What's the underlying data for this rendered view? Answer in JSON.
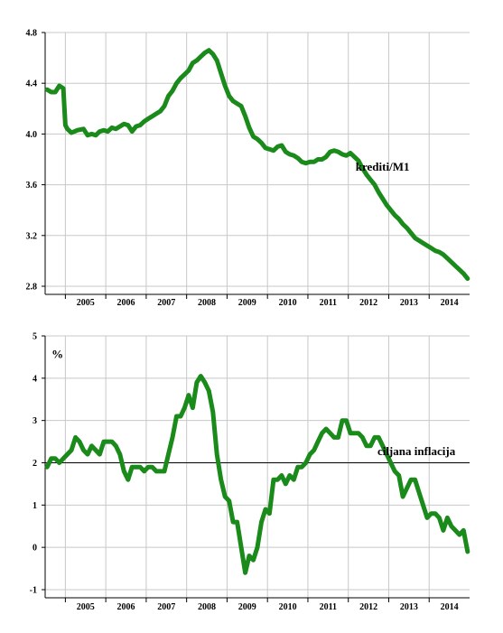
{
  "chart_data": [
    {
      "type": "line",
      "title": "",
      "xlabel": "",
      "ylabel": "",
      "x_range": [
        2004.5,
        2015.0
      ],
      "ylim": [
        2.8,
        4.8
      ],
      "ytick_values": [
        2.8,
        3.2,
        3.6,
        4.0,
        4.4,
        4.8
      ],
      "ytick_labels": [
        "2.8",
        "3.2",
        "3.6",
        "4.0",
        "4.4",
        "4.8"
      ],
      "x_categories": [
        "2005",
        "2006",
        "2007",
        "2008",
        "2009",
        "2010",
        "2011",
        "2012",
        "2013",
        "2014"
      ],
      "grid": true,
      "series_color": "#1a8a1a",
      "series": [
        {
          "name": "krediti/M1",
          "x": [
            2004.55,
            2004.65,
            2004.75,
            2004.85,
            2004.95,
            2005.0,
            2005.05,
            2005.15,
            2005.3,
            2005.45,
            2005.55,
            2005.65,
            2005.75,
            2005.85,
            2005.95,
            2006.05,
            2006.15,
            2006.25,
            2006.35,
            2006.45,
            2006.55,
            2006.65,
            2006.75,
            2006.85,
            2006.95,
            2007.05,
            2007.15,
            2007.25,
            2007.35,
            2007.45,
            2007.55,
            2007.65,
            2007.75,
            2007.85,
            2007.95,
            2008.05,
            2008.15,
            2008.25,
            2008.35,
            2008.45,
            2008.55,
            2008.65,
            2008.75,
            2008.85,
            2008.95,
            2009.05,
            2009.15,
            2009.25,
            2009.35,
            2009.45,
            2009.55,
            2009.65,
            2009.75,
            2009.85,
            2009.95,
            2010.05,
            2010.15,
            2010.25,
            2010.35,
            2010.45,
            2010.55,
            2010.65,
            2010.75,
            2010.85,
            2010.95,
            2011.05,
            2011.15,
            2011.25,
            2011.35,
            2011.45,
            2011.55,
            2011.65,
            2011.75,
            2011.85,
            2011.95,
            2012.05,
            2012.15,
            2012.25,
            2012.35,
            2012.45,
            2012.55,
            2012.65,
            2012.75,
            2012.85,
            2012.95,
            2013.05,
            2013.15,
            2013.25,
            2013.35,
            2013.45,
            2013.55,
            2013.65,
            2013.75,
            2013.85,
            2013.95,
            2014.05,
            2014.15,
            2014.25,
            2014.35,
            2014.45,
            2014.55,
            2014.65,
            2014.75,
            2014.85,
            2014.95
          ],
          "y": [
            4.35,
            4.33,
            4.33,
            4.38,
            4.36,
            4.07,
            4.04,
            4.01,
            4.03,
            4.04,
            3.99,
            4.0,
            3.99,
            4.02,
            4.03,
            4.02,
            4.05,
            4.04,
            4.06,
            4.08,
            4.07,
            4.02,
            4.06,
            4.07,
            4.1,
            4.12,
            4.14,
            4.16,
            4.18,
            4.22,
            4.3,
            4.34,
            4.4,
            4.44,
            4.47,
            4.5,
            4.56,
            4.58,
            4.61,
            4.64,
            4.66,
            4.63,
            4.58,
            4.48,
            4.38,
            4.3,
            4.26,
            4.24,
            4.22,
            4.14,
            4.05,
            3.98,
            3.96,
            3.93,
            3.89,
            3.88,
            3.87,
            3.9,
            3.91,
            3.86,
            3.84,
            3.83,
            3.81,
            3.78,
            3.77,
            3.78,
            3.78,
            3.8,
            3.8,
            3.82,
            3.86,
            3.87,
            3.86,
            3.84,
            3.83,
            3.85,
            3.82,
            3.79,
            3.73,
            3.68,
            3.64,
            3.6,
            3.54,
            3.49,
            3.44,
            3.4,
            3.36,
            3.33,
            3.29,
            3.26,
            3.22,
            3.18,
            3.16,
            3.14,
            3.12,
            3.1,
            3.08,
            3.07,
            3.05,
            3.02,
            2.99,
            2.96,
            2.93,
            2.9,
            2.86
          ]
        }
      ],
      "annotations": [
        {
          "text": "krediti/M1",
          "x": 2012.18,
          "y": 3.71
        }
      ]
    },
    {
      "type": "line",
      "title": "",
      "xlabel": "",
      "ylabel": "%",
      "x_range": [
        2004.5,
        2015.0
      ],
      "ylim": [
        -1,
        5
      ],
      "ytick_values": [
        -1,
        0,
        1,
        2,
        3,
        4,
        5
      ],
      "ytick_labels": [
        "-1",
        "0",
        "1",
        "2",
        "3",
        "4",
        "5"
      ],
      "x_categories": [
        "2005",
        "2006",
        "2007",
        "2008",
        "2009",
        "2010",
        "2011",
        "2012",
        "2013",
        "2014"
      ],
      "grid": true,
      "series_color": "#1a8a1a",
      "reference_line": {
        "name": "ciljana inflacija",
        "y": 2,
        "color": "#000000"
      },
      "series": [
        {
          "name": "",
          "x": [
            2004.55,
            2004.65,
            2004.75,
            2004.85,
            2004.95,
            2005.05,
            2005.15,
            2005.25,
            2005.35,
            2005.45,
            2005.55,
            2005.65,
            2005.75,
            2005.85,
            2005.95,
            2006.05,
            2006.15,
            2006.25,
            2006.35,
            2006.45,
            2006.55,
            2006.65,
            2006.75,
            2006.85,
            2006.95,
            2007.05,
            2007.15,
            2007.25,
            2007.35,
            2007.45,
            2007.55,
            2007.65,
            2007.75,
            2007.85,
            2007.95,
            2008.05,
            2008.15,
            2008.25,
            2008.35,
            2008.45,
            2008.55,
            2008.65,
            2008.75,
            2008.85,
            2008.95,
            2009.05,
            2009.15,
            2009.25,
            2009.35,
            2009.45,
            2009.55,
            2009.65,
            2009.75,
            2009.85,
            2009.95,
            2010.05,
            2010.15,
            2010.25,
            2010.35,
            2010.45,
            2010.55,
            2010.65,
            2010.75,
            2010.85,
            2010.95,
            2011.05,
            2011.15,
            2011.25,
            2011.35,
            2011.45,
            2011.55,
            2011.65,
            2011.75,
            2011.85,
            2011.95,
            2012.05,
            2012.15,
            2012.25,
            2012.35,
            2012.45,
            2012.55,
            2012.65,
            2012.75,
            2012.85,
            2012.95,
            2013.05,
            2013.15,
            2013.25,
            2013.35,
            2013.45,
            2013.55,
            2013.65,
            2013.75,
            2013.85,
            2013.95,
            2014.05,
            2014.15,
            2014.25,
            2014.35,
            2014.45,
            2014.55,
            2014.65,
            2014.75,
            2014.85,
            2014.95
          ],
          "y": [
            1.9,
            2.1,
            2.1,
            2.0,
            2.1,
            2.2,
            2.3,
            2.6,
            2.5,
            2.3,
            2.2,
            2.4,
            2.3,
            2.2,
            2.5,
            2.5,
            2.5,
            2.4,
            2.2,
            1.8,
            1.6,
            1.9,
            1.9,
            1.9,
            1.8,
            1.9,
            1.9,
            1.8,
            1.8,
            1.8,
            2.2,
            2.6,
            3.1,
            3.1,
            3.3,
            3.6,
            3.3,
            3.9,
            4.05,
            3.9,
            3.7,
            3.2,
            2.2,
            1.6,
            1.2,
            1.1,
            0.6,
            0.6,
            0.0,
            -0.6,
            -0.2,
            -0.3,
            0.0,
            0.6,
            0.9,
            0.8,
            1.6,
            1.6,
            1.7,
            1.5,
            1.7,
            1.6,
            1.9,
            1.9,
            2.0,
            2.2,
            2.3,
            2.5,
            2.7,
            2.8,
            2.7,
            2.6,
            2.6,
            3.0,
            3.0,
            2.7,
            2.7,
            2.7,
            2.6,
            2.4,
            2.4,
            2.6,
            2.6,
            2.4,
            2.2,
            2.0,
            1.8,
            1.7,
            1.2,
            1.4,
            1.6,
            1.6,
            1.3,
            1.0,
            0.7,
            0.8,
            0.8,
            0.7,
            0.4,
            0.7,
            0.5,
            0.4,
            0.3,
            0.4,
            -0.1
          ]
        }
      ],
      "annotations": [
        {
          "text": "ciljana inflacija",
          "x": 2012.72,
          "y": 2.18
        },
        {
          "text": "%",
          "x": 2004.66,
          "y": 4.48
        }
      ]
    }
  ]
}
